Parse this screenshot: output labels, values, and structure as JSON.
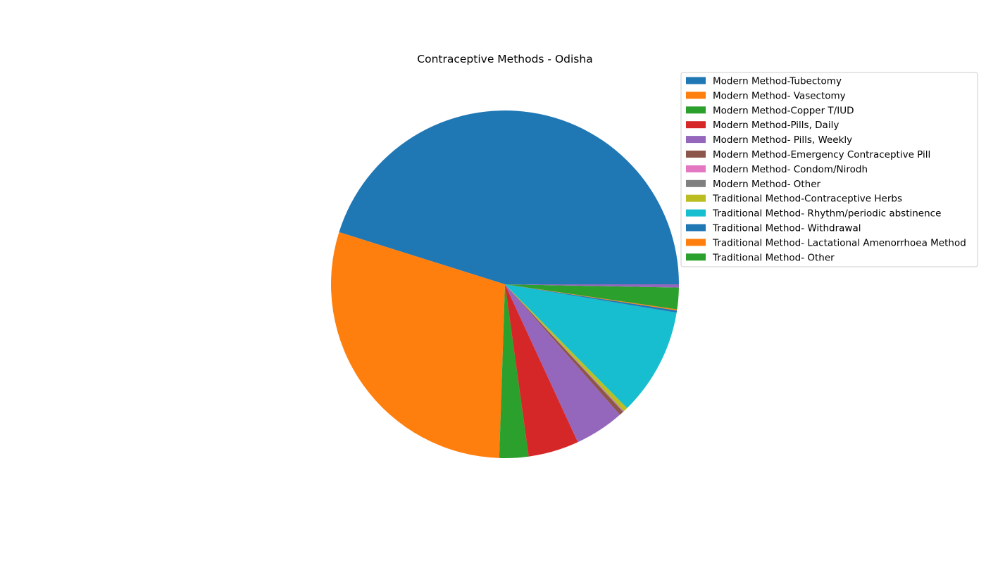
{
  "chart_data": {
    "type": "pie",
    "title": "Contraceptive Methods - Odisha",
    "legend_position": "top-right",
    "slices": [
      {
        "label": "Modern Method-Tubectomy",
        "value": 45.1,
        "color": "#1f77b4"
      },
      {
        "label": "Modern Method- Vasectomy",
        "value": 29.3,
        "color": "#ff7f0e"
      },
      {
        "label": "Modern Method-Copper T/IUD",
        "value": 2.7,
        "color": "#2ca02c"
      },
      {
        "label": "Modern Method-Pills, Daily",
        "value": 4.7,
        "color": "#d62728"
      },
      {
        "label": "Modern Method- Pills, Weekly",
        "value": 4.6,
        "color": "#9467bd"
      },
      {
        "label": "Modern Method-Emergency Contraceptive Pill",
        "value": 0.4,
        "color": "#8c564b"
      },
      {
        "label": "Modern Method- Condom/Nirodh",
        "value": 0.05,
        "color": "#e377c2"
      },
      {
        "label": "Modern Method- Other",
        "value": 0.05,
        "color": "#7f7f7f"
      },
      {
        "label": "Traditional Method-Contraceptive Herbs",
        "value": 0.4,
        "color": "#bcbd22"
      },
      {
        "label": "Traditional Method- Rhythm/periodic abstinence",
        "value": 10.0,
        "color": "#17becf"
      },
      {
        "label": "Traditional Method- Withdrawal",
        "value": 0.2,
        "color": "#1f77b4"
      },
      {
        "label": "Traditional Method- Lactational Amenorrhoea Method",
        "value": 0.1,
        "color": "#ff7f0e"
      },
      {
        "label": "Traditional Method- Other",
        "value": 2.0,
        "color": "#2ca02c"
      }
    ],
    "trailing_slice_color": "#9467bd",
    "trailing_slice_value": 0.3
  }
}
